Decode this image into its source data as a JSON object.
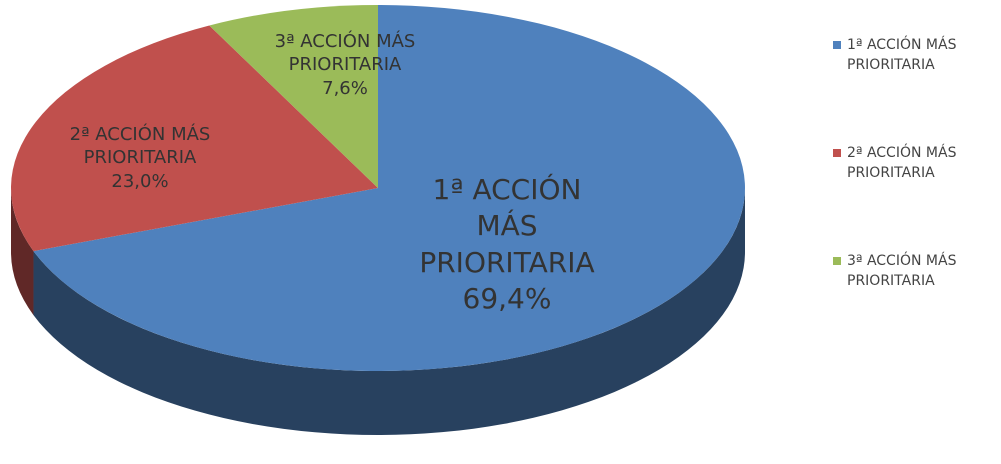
{
  "chart_data": {
    "type": "pie",
    "categories": [
      "1ª ACCIÓN MÁS PRIORITARIA",
      "2ª ACCIÓN MÁS PRIORITARIA",
      "3ª ACCIÓN MÁS PRIORITARIA"
    ],
    "values": [
      69.4,
      23.0,
      7.6
    ],
    "value_labels": [
      "69,4%",
      "23,0%",
      "7,6%"
    ],
    "colors": [
      "#4f81bd",
      "#c0504d",
      "#9bbb59"
    ],
    "legend": "right"
  }
}
